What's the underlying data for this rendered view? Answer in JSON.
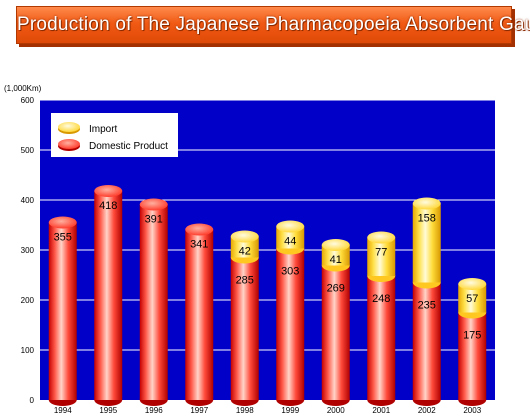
{
  "title": "Production of The Japanese Pharmacopoeia Absorbent Gauze",
  "colors": {
    "plot_background": "#0000c8",
    "domestic": "#ff2a2a",
    "import": "#ffd21e",
    "gridline": "#ffffff"
  },
  "chart_data": {
    "type": "bar",
    "stacked": true,
    "title": "Production of The Japanese Pharmacopoeia Absorbent Gauze",
    "unit_label": "(1,000Km)",
    "categories": [
      "1994",
      "1995",
      "1996",
      "1997",
      "1998",
      "1999",
      "2000",
      "2001",
      "2002",
      "2003"
    ],
    "series": [
      {
        "name": "Domestic Product",
        "values": [
          355,
          418,
          391,
          341,
          285,
          303,
          269,
          248,
          235,
          175
        ]
      },
      {
        "name": "Import",
        "values": [
          null,
          null,
          null,
          null,
          42,
          44,
          41,
          77,
          158,
          57
        ]
      }
    ],
    "ylim": [
      0,
      600
    ],
    "yticks": [
      "0",
      "100",
      "200",
      "300",
      "400",
      "500",
      "600"
    ],
    "grid": true,
    "legend": {
      "placement": "top-left",
      "entries": [
        "Import",
        "Domestic Product"
      ]
    }
  }
}
